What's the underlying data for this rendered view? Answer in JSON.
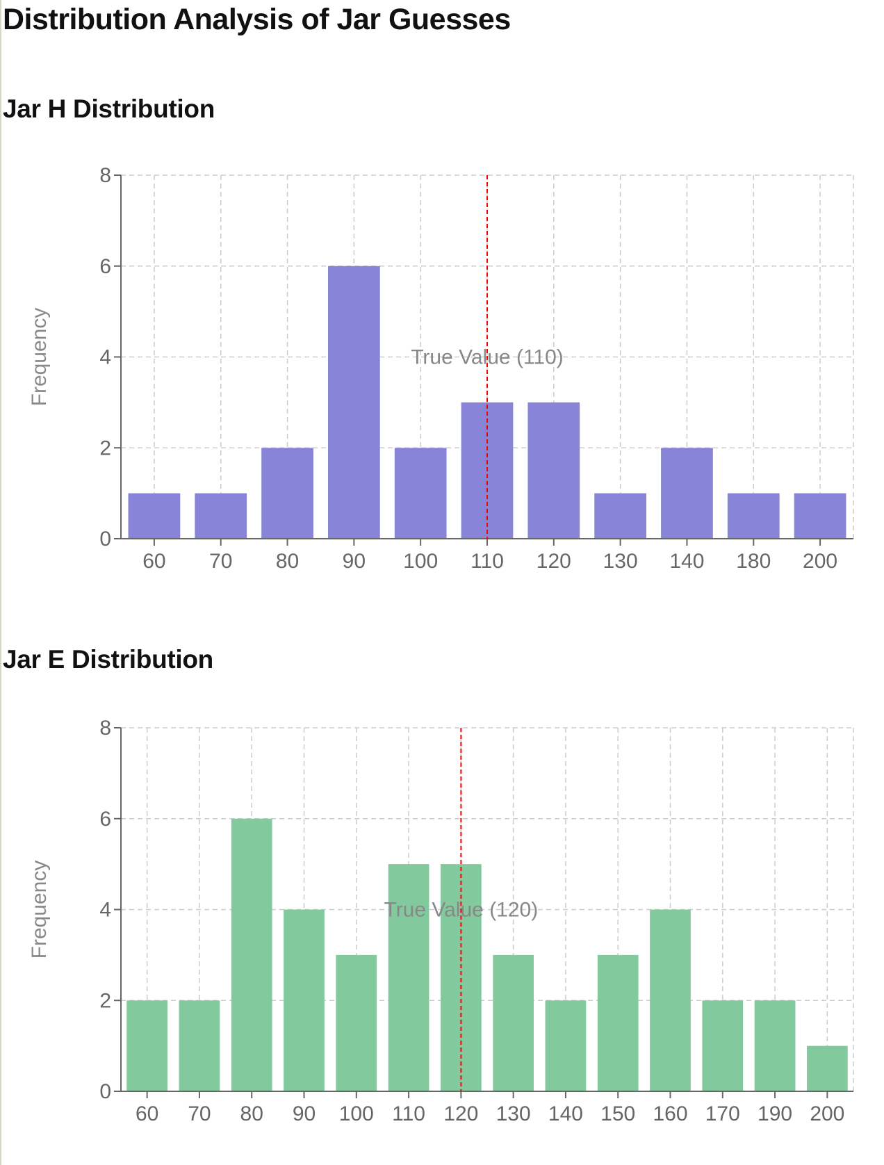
{
  "page": {
    "title": "Distribution Analysis of Jar Guesses"
  },
  "chart_data": [
    {
      "type": "bar",
      "title": "Jar H Distribution",
      "ylabel": "Frequency",
      "xlabel": "",
      "categories": [
        "60",
        "70",
        "80",
        "90",
        "100",
        "110",
        "120",
        "130",
        "140",
        "180",
        "200"
      ],
      "values": [
        1,
        1,
        2,
        6,
        2,
        3,
        3,
        1,
        2,
        1,
        1
      ],
      "ylim": [
        0,
        8
      ],
      "yticks": [
        0,
        2,
        4,
        6,
        8
      ],
      "grid": true,
      "bar_color": "#8884d8",
      "reference_line": {
        "category": "110",
        "label": "True Value (110)",
        "color": "#ff0000"
      }
    },
    {
      "type": "bar",
      "title": "Jar E Distribution",
      "ylabel": "Frequency",
      "xlabel": "",
      "categories": [
        "60",
        "70",
        "80",
        "90",
        "100",
        "110",
        "120",
        "130",
        "140",
        "150",
        "160",
        "170",
        "190",
        "200"
      ],
      "values": [
        2,
        2,
        6,
        4,
        3,
        5,
        5,
        3,
        2,
        3,
        4,
        2,
        2,
        1
      ],
      "ylim": [
        0,
        8
      ],
      "yticks": [
        0,
        2,
        4,
        6,
        8
      ],
      "grid": true,
      "bar_color": "#82ca9d",
      "reference_line": {
        "category": "120",
        "label": "True Value (120)",
        "color": "#ff0000"
      }
    }
  ]
}
